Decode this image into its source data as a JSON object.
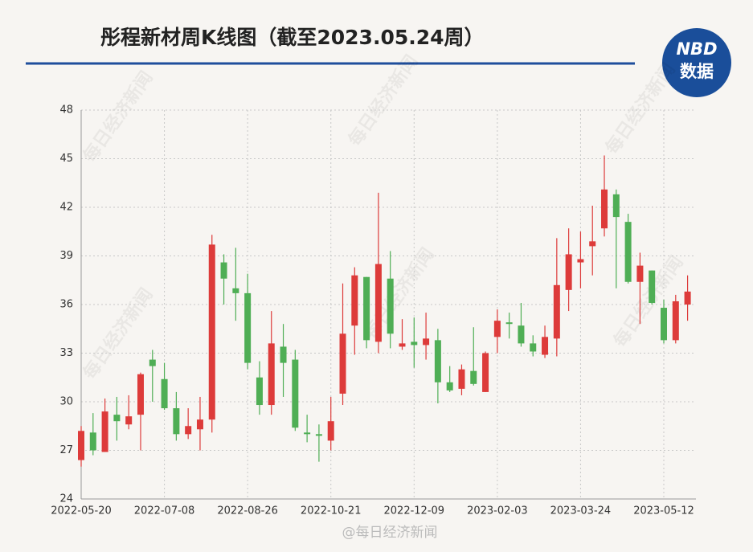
{
  "chart_data": {
    "type": "candlestick",
    "title": "彤程新材周K线图（截至2023.05.24周）",
    "logo": [
      "NBD",
      "数据"
    ],
    "watermark": "@每日经济新闻",
    "background_watermark": "每日经济新闻",
    "categories": [
      "2022-05-20",
      null,
      null,
      null,
      null,
      null,
      null,
      "2022-07-08",
      null,
      null,
      null,
      null,
      null,
      null,
      "2022-08-26",
      null,
      null,
      null,
      null,
      null,
      null,
      "2022-10-21",
      null,
      null,
      null,
      null,
      null,
      null,
      "2022-12-09",
      null,
      null,
      null,
      null,
      null,
      null,
      "2023-02-03",
      null,
      null,
      null,
      null,
      null,
      null,
      "2023-03-24",
      null,
      null,
      null,
      null,
      null,
      null,
      "2023-05-12",
      null,
      null
    ],
    "open": [
      26.4,
      28.1,
      26.9,
      29.2,
      28.6,
      29.2,
      32.6,
      31.4,
      29.6,
      28.0,
      28.3,
      28.9,
      38.6,
      37.0,
      36.7,
      31.5,
      29.8,
      33.4,
      32.6,
      28.1,
      28.0,
      27.6,
      30.5,
      34.7,
      37.7,
      33.7,
      37.6,
      33.4,
      33.7,
      33.5,
      33.8,
      31.2,
      30.8,
      31.9,
      30.6,
      34.0,
      34.9,
      34.7,
      33.6,
      32.9,
      33.9,
      36.9,
      38.6,
      39.6,
      40.7,
      42.8,
      41.1,
      37.4,
      38.1,
      35.8,
      33.8,
      36.0
    ],
    "high": [
      28.5,
      29.3,
      30.2,
      30.3,
      30.4,
      31.8,
      33.2,
      32.4,
      30.6,
      29.6,
      30.3,
      40.3,
      39.1,
      39.5,
      37.9,
      32.5,
      35.6,
      34.8,
      33.2,
      29.2,
      28.6,
      30.3,
      37.3,
      38.3,
      37.7,
      42.9,
      39.3,
      35.1,
      35.2,
      35.5,
      34.5,
      32.2,
      32.3,
      34.6,
      33.1,
      35.7,
      35.5,
      36.1,
      34.1,
      34.7,
      40.1,
      40.7,
      40.5,
      42.1,
      45.2,
      43.1,
      41.6,
      39.2,
      38.1,
      36.3,
      36.6,
      37.8
    ],
    "low": [
      26.0,
      26.7,
      26.9,
      27.6,
      28.3,
      27.0,
      30.0,
      29.5,
      27.6,
      27.7,
      27.0,
      28.1,
      36.0,
      35.0,
      32.0,
      29.2,
      29.2,
      30.3,
      28.2,
      27.5,
      26.3,
      27.0,
      29.8,
      32.9,
      33.3,
      33.0,
      33.3,
      33.2,
      32.1,
      32.6,
      29.9,
      30.6,
      30.4,
      31.0,
      30.6,
      33.0,
      33.9,
      33.4,
      32.8,
      32.7,
      32.8,
      35.6,
      37.0,
      37.8,
      40.2,
      37.0,
      37.3,
      34.8,
      36.0,
      33.6,
      33.6,
      35.0
    ],
    "close": [
      28.2,
      27.0,
      29.4,
      28.8,
      29.1,
      31.7,
      32.2,
      29.6,
      28.0,
      28.5,
      28.9,
      39.7,
      37.6,
      36.7,
      32.4,
      29.8,
      33.6,
      32.4,
      28.4,
      28.0,
      27.9,
      28.8,
      34.2,
      37.8,
      33.8,
      38.5,
      34.2,
      33.6,
      33.5,
      33.9,
      31.2,
      30.7,
      32.0,
      31.1,
      33.0,
      35.0,
      34.8,
      33.6,
      33.1,
      34.0,
      37.2,
      39.1,
      38.8,
      39.9,
      43.1,
      41.4,
      37.4,
      38.4,
      36.1,
      33.8,
      36.2,
      36.8
    ],
    "up_color": "#dd3b3a",
    "down_color": "#4fae55",
    "ylim": [
      24,
      48
    ],
    "yticks": [
      24,
      27,
      30,
      33,
      36,
      39,
      42,
      45,
      48
    ],
    "grid": true
  }
}
